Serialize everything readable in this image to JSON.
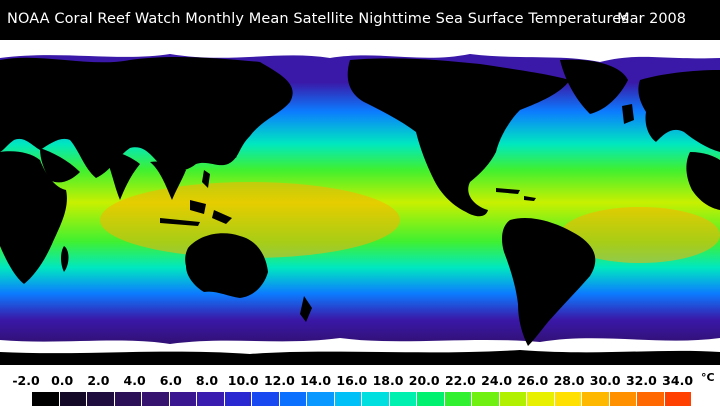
{
  "header": {
    "title": "NOAA Coral Reef Watch Monthly Mean Satellite Nighttime Sea Surface Temperatures",
    "date": "Mar 2008"
  },
  "legend": {
    "unit": "°C",
    "ticks": [
      "-2.0",
      "0.0",
      "2.0",
      "4.0",
      "6.0",
      "8.0",
      "10.0",
      "12.0",
      "14.0",
      "16.0",
      "18.0",
      "20.0",
      "22.0",
      "24.0",
      "26.0",
      "28.0",
      "30.0",
      "32.0",
      "34.0"
    ],
    "colors": [
      "#000000",
      "#140a28",
      "#200d40",
      "#2b1058",
      "#35136f",
      "#3a1690",
      "#3a1cb0",
      "#2a28d0",
      "#1848f0",
      "#0c70ff",
      "#0898ff",
      "#00c0f8",
      "#00dfe0",
      "#00f0b0",
      "#00f070",
      "#30f030",
      "#70f010",
      "#b0f000",
      "#e8f000",
      "#ffe000",
      "#ffb800",
      "#ff9000",
      "#ff6800",
      "#ff4000"
    ]
  },
  "map": {
    "colors": {
      "land": "#000000",
      "ice": "#ffffff",
      "polar": "#2a0a48",
      "subpolar": "#3a18a8",
      "cool": "#0c7cff",
      "temperate": "#00e8c0",
      "warm": "#40f030",
      "tropical": "#c8f000",
      "hot": "#ffb000"
    }
  }
}
